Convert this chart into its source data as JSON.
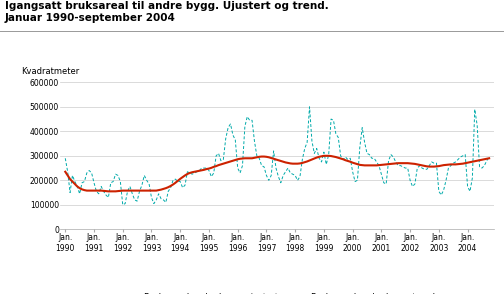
{
  "title_line1": "Igangsatt bruksareal til andre bygg. Ujustert og trend.",
  "title_line2": "Januar 1990-september 2004",
  "ylabel": "Kvadratmeter",
  "ylim": [
    0,
    600000
  ],
  "yticks": [
    0,
    100000,
    200000,
    300000,
    400000,
    500000,
    600000
  ],
  "ytick_labels": [
    "0",
    "100000",
    "200000",
    "300000",
    "400000",
    "500000",
    "600000"
  ],
  "background_color": "#ffffff",
  "plot_bg_color": "#ffffff",
  "ujustert_color": "#00AAAA",
  "trend_color": "#CC2200",
  "legend_ujustert": "Bruksareal andre bygg, ujustert",
  "legend_trend": "Bruksareal andre bygg, trend",
  "ujustert": [
    290000,
    235000,
    150000,
    220000,
    195000,
    175000,
    145000,
    190000,
    195000,
    230000,
    240000,
    230000,
    190000,
    155000,
    145000,
    175000,
    155000,
    140000,
    130000,
    190000,
    195000,
    225000,
    220000,
    195000,
    100000,
    105000,
    155000,
    175000,
    145000,
    120000,
    115000,
    155000,
    180000,
    220000,
    200000,
    185000,
    130000,
    105000,
    120000,
    145000,
    125000,
    120000,
    110000,
    155000,
    170000,
    200000,
    205000,
    195000,
    195000,
    170000,
    180000,
    235000,
    230000,
    225000,
    230000,
    235000,
    240000,
    250000,
    250000,
    250000,
    240000,
    215000,
    230000,
    300000,
    310000,
    280000,
    285000,
    370000,
    415000,
    430000,
    385000,
    365000,
    250000,
    230000,
    260000,
    420000,
    460000,
    445000,
    445000,
    360000,
    300000,
    290000,
    260000,
    255000,
    220000,
    200000,
    220000,
    320000,
    250000,
    215000,
    190000,
    220000,
    235000,
    250000,
    230000,
    225000,
    220000,
    200000,
    215000,
    285000,
    330000,
    355000,
    500000,
    360000,
    310000,
    330000,
    290000,
    275000,
    315000,
    265000,
    305000,
    450000,
    445000,
    390000,
    375000,
    300000,
    285000,
    295000,
    285000,
    290000,
    235000,
    195000,
    200000,
    335000,
    415000,
    355000,
    310000,
    305000,
    290000,
    290000,
    275000,
    260000,
    225000,
    190000,
    185000,
    280000,
    305000,
    295000,
    275000,
    260000,
    260000,
    255000,
    250000,
    250000,
    200000,
    175000,
    185000,
    250000,
    260000,
    250000,
    245000,
    245000,
    260000,
    275000,
    270000,
    270000,
    155000,
    140000,
    160000,
    200000,
    250000,
    260000,
    270000,
    275000,
    285000,
    295000,
    300000,
    305000,
    175000,
    155000,
    210000,
    490000,
    425000,
    255000,
    250000,
    260000,
    280000,
    295000
  ],
  "trend": [
    235000,
    220000,
    205000,
    195000,
    185000,
    175000,
    168000,
    163000,
    160000,
    158000,
    158000,
    158000,
    158000,
    158000,
    158000,
    158000,
    157000,
    156000,
    155000,
    155000,
    155000,
    155000,
    156000,
    157000,
    158000,
    158000,
    158000,
    158000,
    158000,
    158000,
    158000,
    158000,
    158000,
    158000,
    158000,
    158000,
    158000,
    158000,
    158000,
    160000,
    162000,
    165000,
    168000,
    172000,
    177000,
    183000,
    190000,
    198000,
    206000,
    213000,
    220000,
    226000,
    230000,
    233000,
    235000,
    237000,
    239000,
    241000,
    243000,
    246000,
    248000,
    251000,
    255000,
    258000,
    262000,
    265000,
    268000,
    271000,
    274000,
    277000,
    280000,
    283000,
    286000,
    288000,
    289000,
    290000,
    290000,
    290000,
    290000,
    292000,
    294000,
    296000,
    297000,
    297000,
    296000,
    294000,
    291000,
    288000,
    285000,
    282000,
    279000,
    276000,
    273000,
    271000,
    269000,
    268000,
    268000,
    268000,
    269000,
    271000,
    274000,
    277000,
    281000,
    285000,
    289000,
    293000,
    296000,
    298000,
    300000,
    300000,
    300000,
    299000,
    297000,
    295000,
    292000,
    289000,
    286000,
    282000,
    279000,
    276000,
    272000,
    269000,
    266000,
    263000,
    262000,
    261000,
    261000,
    261000,
    261000,
    261000,
    261000,
    262000,
    263000,
    264000,
    265000,
    266000,
    267000,
    268000,
    269000,
    270000,
    270000,
    270000,
    270000,
    270000,
    269000,
    268000,
    267000,
    265000,
    263000,
    261000,
    259000,
    257000,
    256000,
    256000,
    256000,
    257000,
    258000,
    260000,
    262000,
    263000,
    264000,
    265000,
    265000,
    265000,
    266000,
    267000,
    268000,
    270000,
    272000,
    274000,
    276000,
    278000,
    280000,
    282000,
    284000,
    286000,
    288000,
    290000
  ]
}
